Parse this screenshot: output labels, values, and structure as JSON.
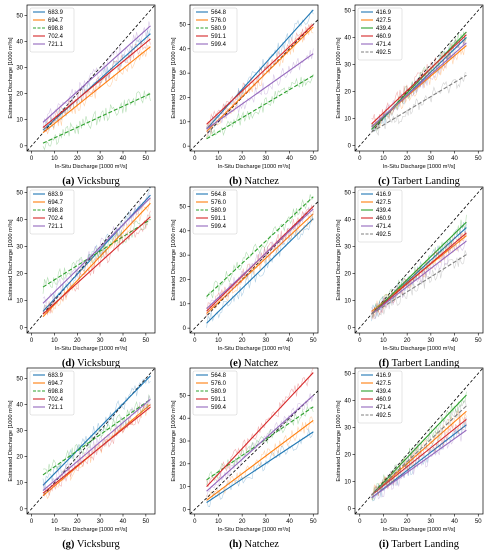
{
  "axes": {
    "xlabel": "In-Situ Discharge [1000 m³/s]",
    "ylabel": "Estimated Discharge [1000 m³/s]",
    "xticks": [
      "0",
      "10",
      "20",
      "30",
      "40",
      "50"
    ],
    "yticks": [
      "0",
      "10",
      "20",
      "30",
      "40",
      "50"
    ]
  },
  "colors": [
    "#1f77b4",
    "#ff7f0e",
    "#2ca02c",
    "#d62728",
    "#9467bd",
    "#7f7f7f"
  ],
  "chart_data": [
    {
      "type": "line",
      "caption": {
        "letter": "(a)",
        "station": "Vicksburg"
      },
      "xlim": [
        -2,
        54
      ],
      "ylim": [
        -2,
        54
      ],
      "series": [
        {
          "name": "683.9",
          "dashed": false,
          "x": [
            5,
            52
          ],
          "y": [
            6,
            43
          ]
        },
        {
          "name": "694.7",
          "dashed": false,
          "x": [
            5,
            52
          ],
          "y": [
            5,
            38
          ]
        },
        {
          "name": "698.8",
          "dashed": true,
          "x": [
            5,
            52
          ],
          "y": [
            1,
            20
          ]
        },
        {
          "name": "702.4",
          "dashed": false,
          "x": [
            5,
            52
          ],
          "y": [
            7,
            41
          ]
        },
        {
          "name": "721.1",
          "dashed": false,
          "x": [
            5,
            52
          ],
          "y": [
            9,
            46
          ]
        }
      ]
    },
    {
      "type": "line",
      "caption": {
        "letter": "(b)",
        "station": "Natchez"
      },
      "xlim": [
        -2,
        52
      ],
      "ylim": [
        -2,
        58
      ],
      "series": [
        {
          "name": "564.8",
          "dashed": false,
          "x": [
            5,
            50
          ],
          "y": [
            7,
            56
          ]
        },
        {
          "name": "576.0",
          "dashed": false,
          "x": [
            5,
            50
          ],
          "y": [
            6,
            49
          ]
        },
        {
          "name": "580.9",
          "dashed": true,
          "x": [
            5,
            50
          ],
          "y": [
            3,
            29
          ]
        },
        {
          "name": "591.1",
          "dashed": false,
          "x": [
            5,
            50
          ],
          "y": [
            9,
            50
          ]
        },
        {
          "name": "599.4",
          "dashed": false,
          "x": [
            5,
            50
          ],
          "y": [
            7,
            38
          ]
        }
      ]
    },
    {
      "type": "line",
      "caption": {
        "letter": "(c)",
        "station": "Tarbert Landing"
      },
      "xlim": [
        -2,
        52
      ],
      "ylim": [
        -2,
        52
      ],
      "series": [
        {
          "name": "416.9",
          "dashed": false,
          "x": [
            5,
            45
          ],
          "y": [
            6,
            40
          ]
        },
        {
          "name": "427.5",
          "dashed": false,
          "x": [
            5,
            45
          ],
          "y": [
            7,
            37
          ]
        },
        {
          "name": "439.4",
          "dashed": false,
          "x": [
            5,
            45
          ],
          "y": [
            6,
            42
          ]
        },
        {
          "name": "460.9",
          "dashed": false,
          "x": [
            5,
            45
          ],
          "y": [
            8,
            41
          ]
        },
        {
          "name": "471.4",
          "dashed": false,
          "x": [
            5,
            45
          ],
          "y": [
            7,
            38
          ]
        },
        {
          "name": "492.5",
          "dashed": true,
          "x": [
            5,
            45
          ],
          "y": [
            5,
            26
          ]
        }
      ]
    },
    {
      "type": "line",
      "caption": {
        "letter": "(d)",
        "station": "Vicksburg"
      },
      "xlim": [
        -2,
        54
      ],
      "ylim": [
        -2,
        52
      ],
      "series": [
        {
          "name": "683.9",
          "dashed": false,
          "x": [
            5,
            52
          ],
          "y": [
            6,
            49
          ]
        },
        {
          "name": "694.7",
          "dashed": false,
          "x": [
            5,
            52
          ],
          "y": [
            4,
            46
          ]
        },
        {
          "name": "698.8",
          "dashed": true,
          "x": [
            5,
            52
          ],
          "y": [
            15,
            40
          ]
        },
        {
          "name": "702.4",
          "dashed": false,
          "x": [
            5,
            52
          ],
          "y": [
            5,
            41
          ]
        },
        {
          "name": "721.1",
          "dashed": false,
          "x": [
            5,
            52
          ],
          "y": [
            9,
            48
          ]
        }
      ]
    },
    {
      "type": "line",
      "caption": {
        "letter": "(e)",
        "station": "Natchez"
      },
      "xlim": [
        -2,
        52
      ],
      "ylim": [
        -2,
        58
      ],
      "series": [
        {
          "name": "564.8",
          "dashed": false,
          "x": [
            5,
            50
          ],
          "y": [
            2,
            45
          ]
        },
        {
          "name": "576.0",
          "dashed": false,
          "x": [
            5,
            50
          ],
          "y": [
            6,
            47
          ]
        },
        {
          "name": "580.9",
          "dashed": true,
          "x": [
            5,
            50
          ],
          "y": [
            13,
            54
          ]
        },
        {
          "name": "591.1",
          "dashed": false,
          "x": [
            5,
            50
          ],
          "y": [
            7,
            50
          ]
        },
        {
          "name": "599.4",
          "dashed": false,
          "x": [
            5,
            50
          ],
          "y": [
            8,
            49
          ]
        }
      ]
    },
    {
      "type": "line",
      "caption": {
        "letter": "(f)",
        "station": "Tarbert Landing"
      },
      "xlim": [
        -2,
        52
      ],
      "ylim": [
        -2,
        52
      ],
      "series": [
        {
          "name": "416.9",
          "dashed": false,
          "x": [
            5,
            45
          ],
          "y": [
            5,
            37
          ]
        },
        {
          "name": "427.5",
          "dashed": false,
          "x": [
            5,
            45
          ],
          "y": [
            6,
            34
          ]
        },
        {
          "name": "439.4",
          "dashed": false,
          "x": [
            5,
            45
          ],
          "y": [
            5,
            39
          ]
        },
        {
          "name": "460.9",
          "dashed": false,
          "x": [
            5,
            45
          ],
          "y": [
            5,
            35
          ]
        },
        {
          "name": "471.4",
          "dashed": false,
          "x": [
            5,
            45
          ],
          "y": [
            5,
            32
          ]
        },
        {
          "name": "492.5",
          "dashed": true,
          "x": [
            5,
            45
          ],
          "y": [
            5,
            27
          ]
        }
      ]
    },
    {
      "type": "line",
      "caption": {
        "letter": "(g)",
        "station": "Vicksburg"
      },
      "xlim": [
        -2,
        54
      ],
      "ylim": [
        -2,
        54
      ],
      "series": [
        {
          "name": "683.9",
          "dashed": false,
          "x": [
            5,
            52
          ],
          "y": [
            9,
            51
          ]
        },
        {
          "name": "694.7",
          "dashed": false,
          "x": [
            5,
            52
          ],
          "y": [
            5,
            40
          ]
        },
        {
          "name": "698.8",
          "dashed": true,
          "x": [
            5,
            52
          ],
          "y": [
            13,
            42
          ]
        },
        {
          "name": "702.4",
          "dashed": false,
          "x": [
            5,
            52
          ],
          "y": [
            6,
            39
          ]
        },
        {
          "name": "721.1",
          "dashed": false,
          "x": [
            5,
            52
          ],
          "y": [
            7,
            42
          ]
        }
      ]
    },
    {
      "type": "line",
      "caption": {
        "letter": "(h)",
        "station": "Natchez"
      },
      "xlim": [
        -2,
        52
      ],
      "ylim": [
        -2,
        62
      ],
      "series": [
        {
          "name": "564.8",
          "dashed": false,
          "x": [
            5,
            50
          ],
          "y": [
            3,
            34
          ]
        },
        {
          "name": "576.0",
          "dashed": false,
          "x": [
            5,
            50
          ],
          "y": [
            4,
            39
          ]
        },
        {
          "name": "580.9",
          "dashed": true,
          "x": [
            5,
            50
          ],
          "y": [
            13,
            45
          ]
        },
        {
          "name": "591.1",
          "dashed": false,
          "x": [
            5,
            50
          ],
          "y": [
            10,
            60
          ]
        },
        {
          "name": "599.4",
          "dashed": false,
          "x": [
            5,
            50
          ],
          "y": [
            8,
            50
          ]
        }
      ]
    },
    {
      "type": "line",
      "caption": {
        "letter": "(i)",
        "station": "Tarbert Landing"
      },
      "xlim": [
        -2,
        52
      ],
      "ylim": [
        -2,
        52
      ],
      "series": [
        {
          "name": "416.9",
          "dashed": false,
          "x": [
            5,
            45
          ],
          "y": [
            4,
            31
          ]
        },
        {
          "name": "427.5",
          "dashed": false,
          "x": [
            5,
            45
          ],
          "y": [
            5,
            36
          ]
        },
        {
          "name": "439.4",
          "dashed": false,
          "x": [
            5,
            45
          ],
          "y": [
            5,
            42
          ]
        },
        {
          "name": "460.9",
          "dashed": false,
          "x": [
            5,
            45
          ],
          "y": [
            5,
            33
          ]
        },
        {
          "name": "471.4",
          "dashed": false,
          "x": [
            5,
            45
          ],
          "y": [
            4,
            29
          ]
        },
        {
          "name": "492.5",
          "dashed": true,
          "x": [
            5,
            45
          ],
          "y": [
            5,
            38
          ]
        }
      ]
    }
  ]
}
